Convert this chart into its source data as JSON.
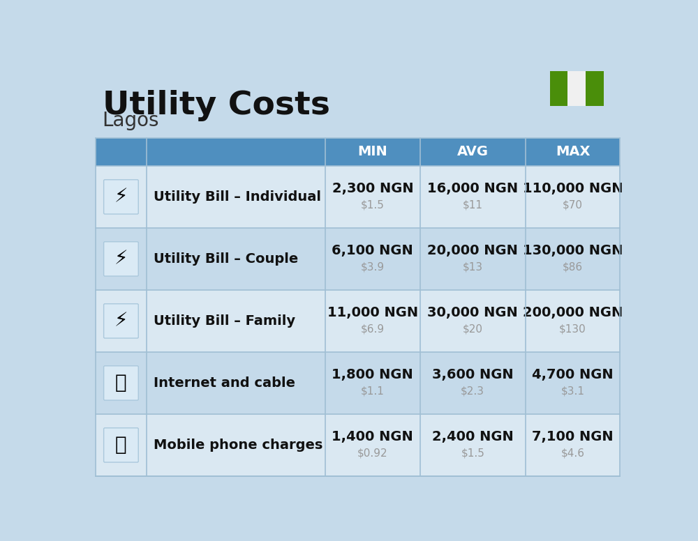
{
  "title": "Utility Costs",
  "subtitle": "Lagos",
  "background_color": "#c5daea",
  "header_bg_color": "#4f8fbf",
  "header_text_color": "#ffffff",
  "row_bg_color_1": "#dae8f2",
  "row_bg_color_2": "#c5daea",
  "divider_color": "#a0bfd4",
  "col_headers": [
    "MIN",
    "AVG",
    "MAX"
  ],
  "rows": [
    {
      "label": "Utility Bill – Individual",
      "min_ngn": "2,300 NGN",
      "min_usd": "$1.5",
      "avg_ngn": "16,000 NGN",
      "avg_usd": "$11",
      "max_ngn": "110,000 NGN",
      "max_usd": "$70"
    },
    {
      "label": "Utility Bill – Couple",
      "min_ngn": "6,100 NGN",
      "min_usd": "$3.9",
      "avg_ngn": "20,000 NGN",
      "avg_usd": "$13",
      "max_ngn": "130,000 NGN",
      "max_usd": "$86"
    },
    {
      "label": "Utility Bill – Family",
      "min_ngn": "11,000 NGN",
      "min_usd": "$6.9",
      "avg_ngn": "30,000 NGN",
      "avg_usd": "$20",
      "max_ngn": "200,000 NGN",
      "max_usd": "$130"
    },
    {
      "label": "Internet and cable",
      "min_ngn": "1,800 NGN",
      "min_usd": "$1.1",
      "avg_ngn": "3,600 NGN",
      "avg_usd": "$2.3",
      "max_ngn": "4,700 NGN",
      "max_usd": "$3.1"
    },
    {
      "label": "Mobile phone charges",
      "min_ngn": "1,400 NGN",
      "min_usd": "$0.92",
      "avg_ngn": "2,400 NGN",
      "avg_usd": "$1.5",
      "max_ngn": "7,100 NGN",
      "max_usd": "$4.6"
    }
  ],
  "title_fontsize": 34,
  "subtitle_fontsize": 20,
  "header_fontsize": 14,
  "label_fontsize": 14,
  "value_fontsize": 14,
  "usd_fontsize": 11,
  "nigeria_flag_green": "#4a8e0a",
  "nigeria_flag_white": "#f0f0f0"
}
